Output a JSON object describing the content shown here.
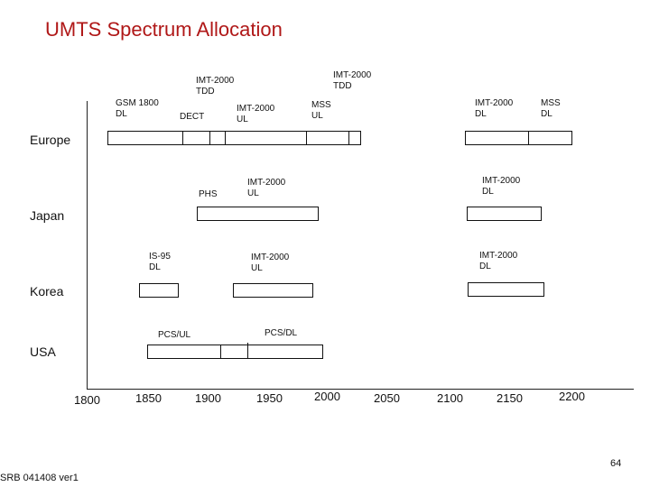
{
  "title": "UMTS Spectrum Allocation",
  "regions": {
    "europe": "Europe",
    "japan": "Japan",
    "korea": "Korea",
    "usa": "USA"
  },
  "axis_ticks": [
    "1800",
    "1850",
    "1900",
    "1950",
    "2000",
    "2050",
    "2100",
    "2150",
    "2200"
  ],
  "labels": {
    "eu_gsm": [
      "GSM 1800",
      "DL"
    ],
    "eu_imt_tdd": [
      "IMT-2000",
      "TDD"
    ],
    "eu_dect": [
      "DECT"
    ],
    "eu_imt_ul": [
      "IMT-2000",
      "UL"
    ],
    "eu_mss_ul": [
      "MSS",
      "UL"
    ],
    "eu_imt_tdd2": [
      "IMT-2000",
      "TDD"
    ],
    "eu_imt_dl": [
      "IMT-2000",
      "DL"
    ],
    "eu_mss_dl": [
      "MSS",
      "DL"
    ],
    "jp_phs": [
      "PHS"
    ],
    "jp_imt_ul": [
      "IMT-2000",
      "UL"
    ],
    "jp_imt_dl": [
      "IMT-2000",
      "DL"
    ],
    "kr_is95": [
      "IS-95",
      "DL"
    ],
    "kr_imt_ul": [
      "IMT-2000",
      "UL"
    ],
    "kr_imt_dl": [
      "IMT-2000",
      "DL"
    ],
    "us_pcs_ul": [
      "PCS/UL"
    ],
    "us_pcs_dl": [
      "PCS/DL"
    ]
  },
  "footer": {
    "doc_ref": "SRB 041408 ver1",
    "page": "64"
  }
}
